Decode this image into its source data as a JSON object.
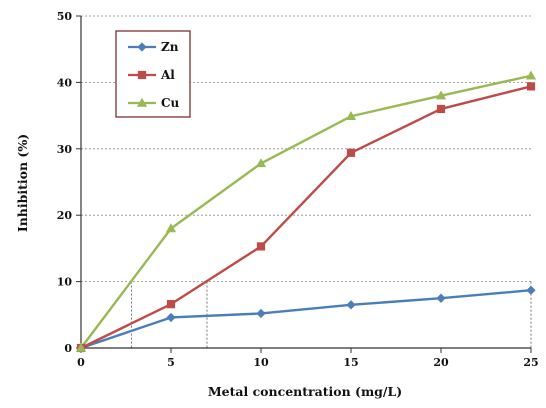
{
  "chart_data": {
    "type": "line",
    "title": "",
    "xlabel": "Metal concentration (mg/L)",
    "ylabel": "Inhibition (%)",
    "x": [
      0,
      5,
      10,
      15,
      20,
      25
    ],
    "xlim": [
      0,
      25
    ],
    "ylim": [
      0,
      50
    ],
    "xticks": [
      "0",
      "5",
      "10",
      "15",
      "20",
      "25"
    ],
    "yticks": [
      "0",
      "10",
      "20",
      "30",
      "40",
      "50"
    ],
    "grid": "horizontal dashed",
    "legend_position": "top-left",
    "series": [
      {
        "name": "Zn",
        "values": [
          0,
          4.6,
          5.2,
          6.5,
          7.5,
          8.7
        ],
        "color": "#4a7ebb",
        "marker": "diamond"
      },
      {
        "name": "Al",
        "values": [
          0,
          6.6,
          15.3,
          29.4,
          36.0,
          39.4
        ],
        "color": "#be4b48",
        "marker": "square"
      },
      {
        "name": "Cu",
        "values": [
          0,
          18.0,
          27.8,
          34.9,
          38.0,
          41.0
        ],
        "color": "#98b954",
        "marker": "triangle"
      }
    ],
    "annotations": {
      "guide_lines": [
        {
          "x": 2.8,
          "y": 10.0
        },
        {
          "x": 7.0,
          "y": 10.0
        },
        {
          "x": 25.0,
          "y": 10.0
        }
      ]
    }
  }
}
